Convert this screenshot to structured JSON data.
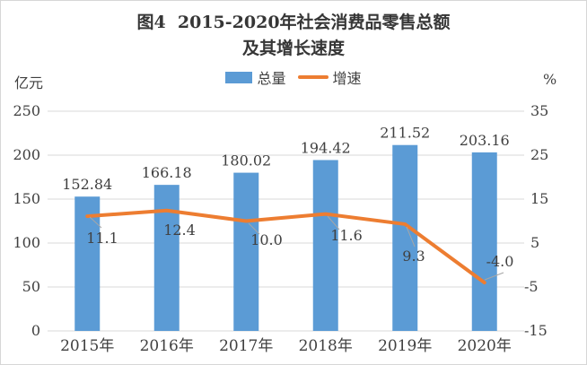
{
  "title": {
    "line1": "图4  2015-2020年社会消费品零售总额",
    "line2": "及其增长速度"
  },
  "legend": {
    "items": [
      {
        "label": "总量",
        "type": "bar",
        "color": "#5B9BD5"
      },
      {
        "label": "增速",
        "type": "line",
        "color": "#ED7D31"
      }
    ]
  },
  "left_axis": {
    "unit": "亿元",
    "ticks": [
      "250",
      "200",
      "150",
      "100",
      "50",
      "0"
    ]
  },
  "right_axis": {
    "unit": "%",
    "ticks": [
      "35",
      "25",
      "15",
      "5",
      "-5",
      "-15"
    ]
  },
  "chart_data": {
    "type": "bar",
    "subtype": "combo-bar-line",
    "title": "图4 2015-2020年社会消费品零售总额及其增长速度",
    "categories": [
      "2015年",
      "2016年",
      "2017年",
      "2018年",
      "2019年",
      "2020年"
    ],
    "series": [
      {
        "name": "总量",
        "type": "bar",
        "axis": "left",
        "unit": "亿元",
        "color": "#5B9BD5",
        "values": [
          152.84,
          166.18,
          180.02,
          194.42,
          211.52,
          203.16
        ],
        "labels": [
          "152.84",
          "166.18",
          "180.02",
          "194.42",
          "211.52",
          "203.16"
        ]
      },
      {
        "name": "增速",
        "type": "line",
        "axis": "right",
        "unit": "%",
        "color": "#ED7D31",
        "values": [
          11.1,
          12.4,
          10.0,
          11.6,
          9.3,
          -4.0
        ],
        "labels": [
          "11.1",
          "12.4",
          "10.0",
          "11.6",
          "9.3",
          "-4.0"
        ]
      }
    ],
    "left_ylim": [
      0,
      250
    ],
    "right_ylim": [
      -15,
      35
    ],
    "grid": true,
    "legend_position": "top"
  },
  "colors": {
    "bar": "#5B9BD5",
    "line": "#ED7D31",
    "grid": "#D9D9D9",
    "leader": "#A6A6A6",
    "text": "#404040",
    "title": "#363636",
    "border": "#D6D6D6"
  }
}
